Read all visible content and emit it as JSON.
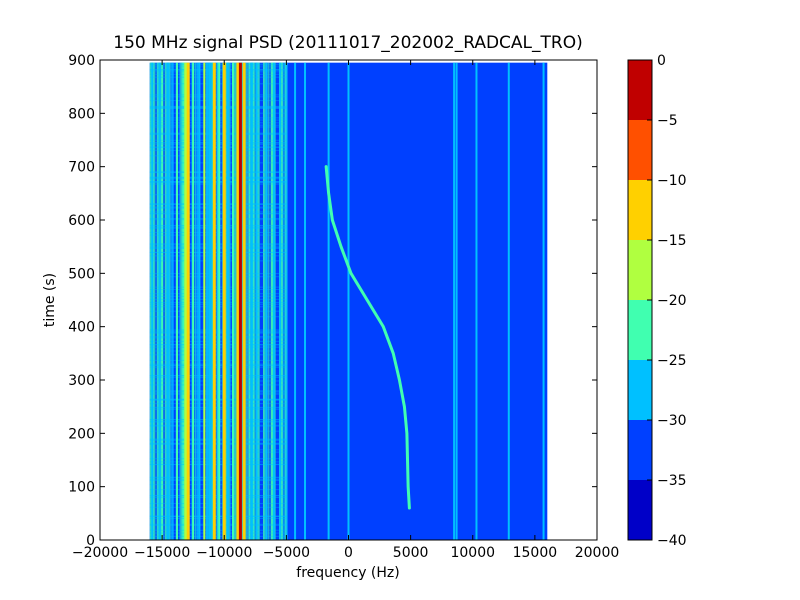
{
  "chart_data": {
    "type": "heatmap",
    "title": "150 MHz signal PSD (20111017_202002_RADCAL_TRO)",
    "xlabel": "frequency (Hz)",
    "ylabel": "time (s)",
    "xlim": [
      -20000,
      20000
    ],
    "ylim": [
      0,
      900
    ],
    "data_extent": {
      "x": [
        -16000,
        16000
      ],
      "y": [
        0,
        895
      ]
    },
    "x_ticks": [
      -20000,
      -15000,
      -10000,
      -5000,
      0,
      5000,
      10000,
      15000,
      20000
    ],
    "x_tick_labels": [
      "−20000",
      "−15000",
      "−10000",
      "−5000",
      "0",
      "5000",
      "10000",
      "15000",
      "20000"
    ],
    "y_ticks": [
      0,
      100,
      200,
      300,
      400,
      500,
      600,
      700,
      800,
      900
    ],
    "y_tick_labels": [
      "0",
      "100",
      "200",
      "300",
      "400",
      "500",
      "600",
      "700",
      "800",
      "900"
    ],
    "colorbar": {
      "levels": [
        -40,
        -35,
        -30,
        -25,
        -20,
        -15,
        -10,
        -5,
        0
      ],
      "tick_labels": [
        "−40",
        "−35",
        "−30",
        "−25",
        "−20",
        "−15",
        "−10",
        "−5",
        "0"
      ],
      "colors": [
        "#0000c8",
        "#0040ff",
        "#00c0ff",
        "#40ffb0",
        "#b0ff40",
        "#ffd000",
        "#ff5000",
        "#c00000"
      ]
    },
    "background_level": -35,
    "noisy_band": [
      -16000,
      -5000
    ],
    "vertical_lines": [
      {
        "freq": -15800,
        "level": -28
      },
      {
        "freq": -15200,
        "level": -26
      },
      {
        "freq": -14500,
        "level": -29
      },
      {
        "freq": -13800,
        "level": -22
      },
      {
        "freq": -13100,
        "level": -19
      },
      {
        "freq": -12900,
        "level": -14
      },
      {
        "freq": -12500,
        "level": -24
      },
      {
        "freq": -12000,
        "level": -28
      },
      {
        "freq": -11600,
        "level": -20
      },
      {
        "freq": -11200,
        "level": -27
      },
      {
        "freq": -10800,
        "level": -12
      },
      {
        "freq": -10400,
        "level": -25
      },
      {
        "freq": -10000,
        "level": -14
      },
      {
        "freq": -9700,
        "level": -28
      },
      {
        "freq": -9300,
        "level": -24
      },
      {
        "freq": -8900,
        "level": -12
      },
      {
        "freq": -8700,
        "level": -3
      },
      {
        "freq": -8400,
        "level": -14
      },
      {
        "freq": -7800,
        "level": -27
      },
      {
        "freq": -7400,
        "level": -26
      },
      {
        "freq": -6600,
        "level": -29
      },
      {
        "freq": -6000,
        "level": -26
      },
      {
        "freq": -5500,
        "level": -29
      },
      {
        "freq": -4300,
        "level": -29
      },
      {
        "freq": -3500,
        "level": -29
      },
      {
        "freq": -1600,
        "level": -28
      },
      {
        "freq": 0,
        "level": -26
      },
      {
        "freq": 8500,
        "level": -27
      },
      {
        "freq": 8700,
        "level": -29
      },
      {
        "freq": 10300,
        "level": -29
      },
      {
        "freq": 12900,
        "level": -27
      },
      {
        "freq": 15700,
        "level": -29
      }
    ],
    "drifting_signal": {
      "level": -25,
      "points": [
        {
          "t": 700,
          "f": -1800
        },
        {
          "t": 650,
          "f": -1600
        },
        {
          "t": 600,
          "f": -1300
        },
        {
          "t": 550,
          "f": -600
        },
        {
          "t": 500,
          "f": 200
        },
        {
          "t": 450,
          "f": 1500
        },
        {
          "t": 400,
          "f": 2800
        },
        {
          "t": 350,
          "f": 3600
        },
        {
          "t": 300,
          "f": 4100
        },
        {
          "t": 250,
          "f": 4500
        },
        {
          "t": 200,
          "f": 4700
        },
        {
          "t": 150,
          "f": 4750
        },
        {
          "t": 100,
          "f": 4800
        },
        {
          "t": 60,
          "f": 4900
        }
      ]
    }
  }
}
